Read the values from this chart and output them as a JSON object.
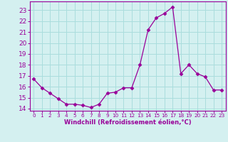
{
  "x": [
    0,
    1,
    2,
    3,
    4,
    5,
    6,
    7,
    8,
    9,
    10,
    11,
    12,
    13,
    14,
    15,
    16,
    17,
    18,
    19,
    20,
    21,
    22,
    23
  ],
  "y": [
    16.7,
    15.9,
    15.4,
    14.9,
    14.4,
    14.4,
    14.3,
    14.1,
    14.4,
    15.4,
    15.5,
    15.9,
    15.9,
    18.0,
    21.2,
    22.3,
    22.7,
    23.3,
    17.2,
    18.0,
    17.2,
    16.9,
    15.7,
    15.7
  ],
  "line_color": "#990099",
  "marker": "D",
  "marker_size": 2.5,
  "bg_color": "#d4f0f0",
  "grid_color": "#aadddd",
  "xlabel": "Windchill (Refroidissement éolien,°C)",
  "xlim": [
    -0.5,
    23.5
  ],
  "ylim": [
    13.8,
    23.8
  ],
  "yticks": [
    14,
    15,
    16,
    17,
    18,
    19,
    20,
    21,
    22,
    23
  ],
  "xticks": [
    0,
    1,
    2,
    3,
    4,
    5,
    6,
    7,
    8,
    9,
    10,
    11,
    12,
    13,
    14,
    15,
    16,
    17,
    18,
    19,
    20,
    21,
    22,
    23
  ],
  "tick_color": "#990099",
  "label_color": "#990099",
  "spine_color": "#990099",
  "xlabel_fontsize": 6.0,
  "ytick_fontsize": 6.5,
  "xtick_fontsize": 5.2
}
